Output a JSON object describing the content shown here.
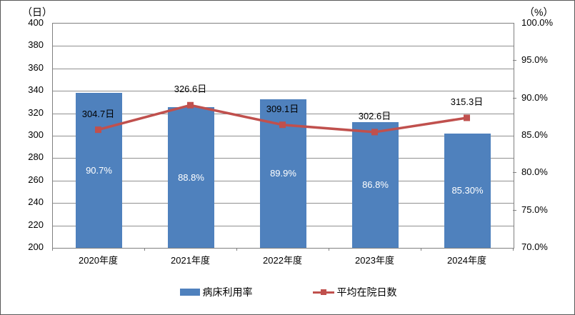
{
  "chart_data": {
    "type": "bar",
    "subtype": "bar-line-combo",
    "title": "",
    "xlabel": "",
    "ylabel_left": "（日）",
    "ylabel_right": "（%）",
    "grid": true,
    "legend_position": "bottom",
    "categories": [
      "2020年度",
      "2021年度",
      "2022年度",
      "2023年度",
      "2024年度"
    ],
    "series": [
      {
        "name": "病床利用率",
        "type": "bar",
        "axis": "right",
        "values": [
          90.7,
          88.8,
          89.9,
          86.8,
          85.3
        ],
        "labels": [
          "90.7%",
          "88.8%",
          "89.9%",
          "86.8%",
          "85.30%"
        ],
        "color": "#4F81BD"
      },
      {
        "name": "平均在院日数",
        "type": "line",
        "axis": "left",
        "values": [
          304.7,
          326.6,
          309.1,
          302.6,
          315.3
        ],
        "labels": [
          "304.7日",
          "326.6日",
          "309.1日",
          "302.6日",
          "315.3日"
        ],
        "color": "#C0504D"
      }
    ],
    "left_axis": {
      "unit": "（日）",
      "min": 200,
      "max": 400,
      "step": 20,
      "tick_labels": [
        "400",
        "380",
        "360",
        "340",
        "320",
        "300",
        "280",
        "260",
        "240",
        "220",
        "200"
      ]
    },
    "right_axis": {
      "unit": "（%）",
      "min": 70,
      "max": 100,
      "step": 5,
      "tick_labels": [
        "100.0%",
        "95.0%",
        "90.0%",
        "85.0%",
        "80.0%",
        "75.0%",
        "70.0%"
      ]
    },
    "colors": {
      "bar": "#4F81BD",
      "line": "#C0504D",
      "grid": "#909090",
      "plot_border": "#808080",
      "bar_label_text": "#FFFFFF",
      "data_label_text": "#000000"
    }
  }
}
